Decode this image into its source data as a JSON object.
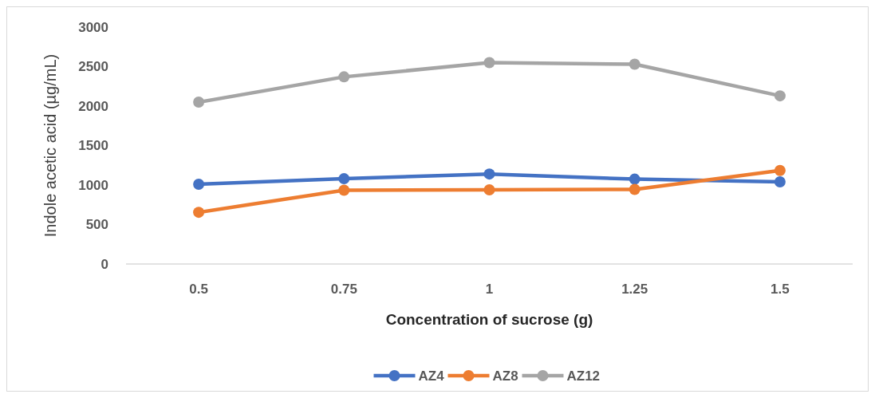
{
  "chart_data": {
    "type": "line",
    "xlabel": "Concentration of sucrose (g)",
    "ylabel": "Indole acetic  acid (µg/mL)",
    "categories": [
      "0.5",
      "0.75",
      "1",
      "1.25",
      "1.5"
    ],
    "ylim": [
      0,
      3000
    ],
    "yticks": [
      0,
      500,
      1000,
      1500,
      2000,
      2500,
      3000
    ],
    "grid": false,
    "legend": "bottom",
    "marker": "circle",
    "line_style": "solid",
    "series": [
      {
        "name": "AZ4",
        "color": "#4472c4",
        "values": [
          1010,
          1080,
          1140,
          1075,
          1040
        ]
      },
      {
        "name": "AZ8",
        "color": "#ed7d31",
        "values": [
          655,
          935,
          940,
          945,
          1185
        ]
      },
      {
        "name": "AZ12",
        "color": "#a5a5a5",
        "values": [
          2050,
          2370,
          2550,
          2530,
          2130
        ]
      }
    ]
  }
}
